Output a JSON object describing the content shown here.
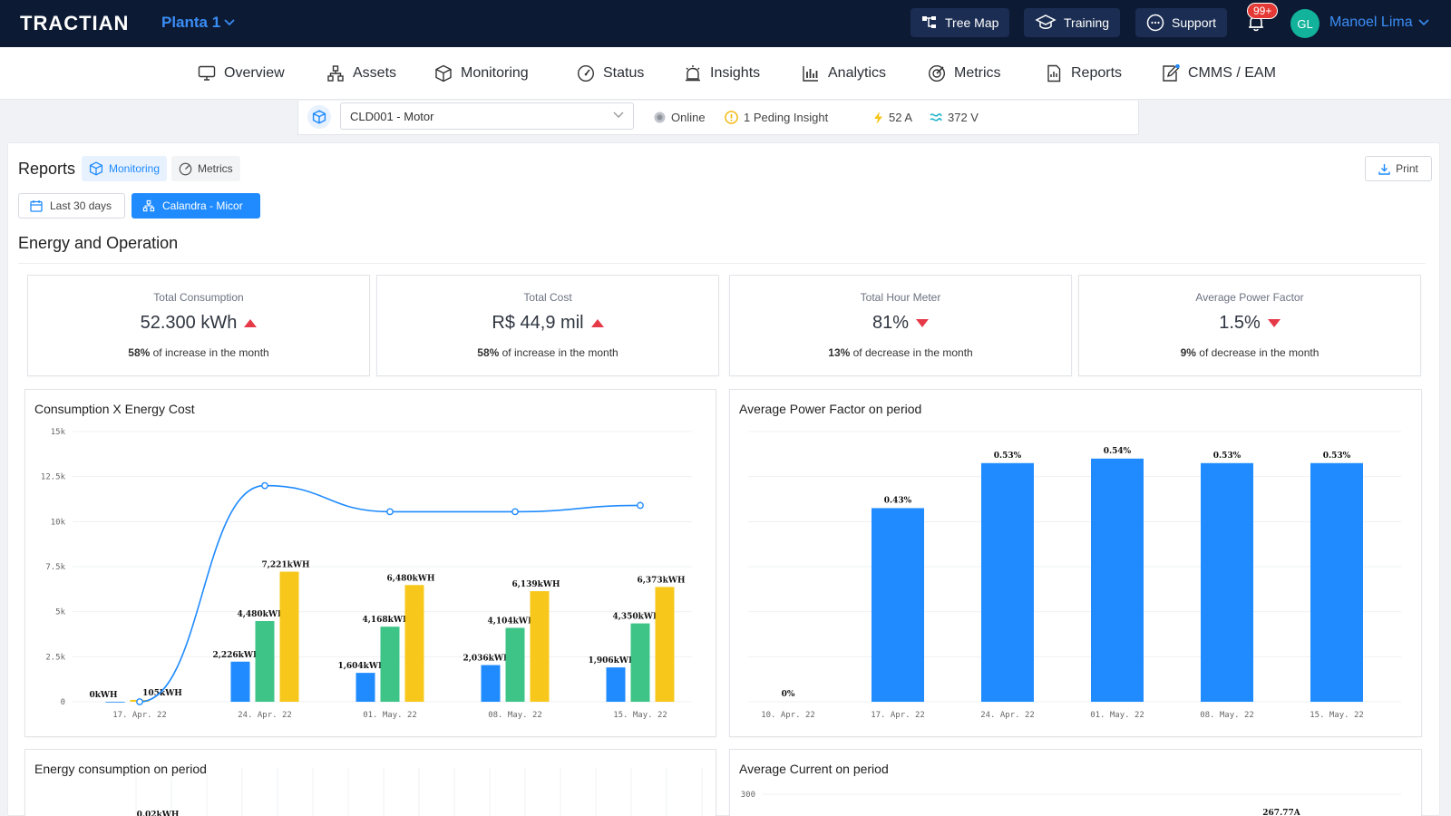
{
  "brand": "TRACTIAN",
  "plant": "Planta 1",
  "top_buttons": [
    {
      "label": "Tree Map",
      "icon": "tree-map-icon"
    },
    {
      "label": "Training",
      "icon": "graduation-cap-icon"
    },
    {
      "label": "Support",
      "icon": "chat-icon"
    }
  ],
  "notifications_badge": "99+",
  "user": {
    "initials": "GL",
    "name": "Manoel Lima"
  },
  "nav": [
    {
      "label": "Overview",
      "icon": "monitor-icon"
    },
    {
      "label": "Assets",
      "icon": "assets-icon"
    },
    {
      "label": "Monitoring",
      "icon": "cube-icon"
    },
    {
      "label": "Status",
      "icon": "gauge-icon"
    },
    {
      "label": "Insights",
      "icon": "alarm-icon"
    },
    {
      "label": "Analytics",
      "icon": "bar-chart-icon"
    },
    {
      "label": "Metrics",
      "icon": "target-icon"
    },
    {
      "label": "Reports",
      "icon": "report-icon"
    },
    {
      "label": "CMMS / EAM",
      "icon": "edit-icon"
    }
  ],
  "asset": {
    "selected": "CLD001 - Motor",
    "status": "Online",
    "insight": "1 Peding Insight",
    "current": "52 A",
    "voltage": "372 V"
  },
  "reports": {
    "title": "Reports",
    "tabs": [
      "Monitoring",
      "Metrics"
    ],
    "print": "Print",
    "date_filter": "Last 30 days",
    "asset_filter": "Calandra - Micor"
  },
  "section_title": "Energy and Operation",
  "kpis": [
    {
      "title": "Total Consumption",
      "value": "52.300 kWh",
      "trend": "up",
      "pct": "58%",
      "note": " of increase in the month"
    },
    {
      "title": "Total Cost",
      "value": "R$ 44,9 mil",
      "trend": "up",
      "pct": "58%",
      "note": " of increase in the month"
    },
    {
      "title": "Total Hour Meter",
      "value": "81%",
      "trend": "down",
      "pct": "13%",
      "note": " of decrease in the month"
    },
    {
      "title": "Average Power Factor",
      "value": "1.5%",
      "trend": "down",
      "pct": "9%",
      "note": " of decrease in the month"
    }
  ],
  "cards": {
    "c1": "Consumption X Energy Cost",
    "c2": "Average Power Factor on period",
    "c3": "Energy consumption on period",
    "c4": "Average Current on period"
  },
  "colors": {
    "blue": "#1f8bff",
    "green": "#3ec487",
    "yellow": "#f7c81b",
    "accent": "#3a8df5",
    "red": "#e53948"
  },
  "chart_data": [
    {
      "type": "bar",
      "title": "Consumption X Energy Cost",
      "categories": [
        "17. Apr. 22",
        "24. Apr. 22",
        "01. May. 22",
        "08. May. 22",
        "15. May. 22"
      ],
      "y_ticks": [
        "0",
        "2.5k",
        "5k",
        "7.5k",
        "10k",
        "12.5k",
        "15k"
      ],
      "ylim": [
        0,
        15000
      ],
      "series": [
        {
          "color": "blue",
          "values": [
            0,
            2226,
            1604,
            2036,
            1906
          ],
          "labels": [
            "0kWH",
            "2,226kWH",
            "1,604kWH",
            "2,036kWH",
            "1,906kWH"
          ]
        },
        {
          "color": "green",
          "values": [
            null,
            4480,
            4168,
            4104,
            4350
          ],
          "labels": [
            "",
            "4,480kWH",
            "4,168kWH",
            "4,104kWH",
            "4,350kWH"
          ]
        },
        {
          "color": "yellow",
          "values": [
            105,
            7221,
            6480,
            6139,
            6373
          ],
          "labels": [
            "105kWH",
            "7,221kWH",
            "6,480kWH",
            "6,139kWH",
            "6,373kWH"
          ]
        }
      ],
      "line": {
        "values": [
          0,
          12000,
          10550,
          10550,
          10900
        ]
      }
    },
    {
      "type": "bar",
      "title": "Average Power Factor on period",
      "categories": [
        "10. Apr. 22",
        "17. Apr. 22",
        "24. Apr. 22",
        "01. May. 22",
        "08. May. 22",
        "15. May. 22"
      ],
      "values": [
        0,
        0.43,
        0.53,
        0.54,
        0.53,
        0.53
      ],
      "labels": [
        "0%",
        "0.43%",
        "0.53%",
        "0.54%",
        "0.53%",
        "0.53%"
      ],
      "ylim": [
        0,
        0.6
      ]
    },
    {
      "type": "bar",
      "title": "Energy consumption on period",
      "labels": [
        "0,02kWH"
      ]
    },
    {
      "type": "bar",
      "title": "Average Current on period",
      "y_ticks": [
        "300"
      ],
      "labels": [
        "267.77A"
      ]
    }
  ]
}
